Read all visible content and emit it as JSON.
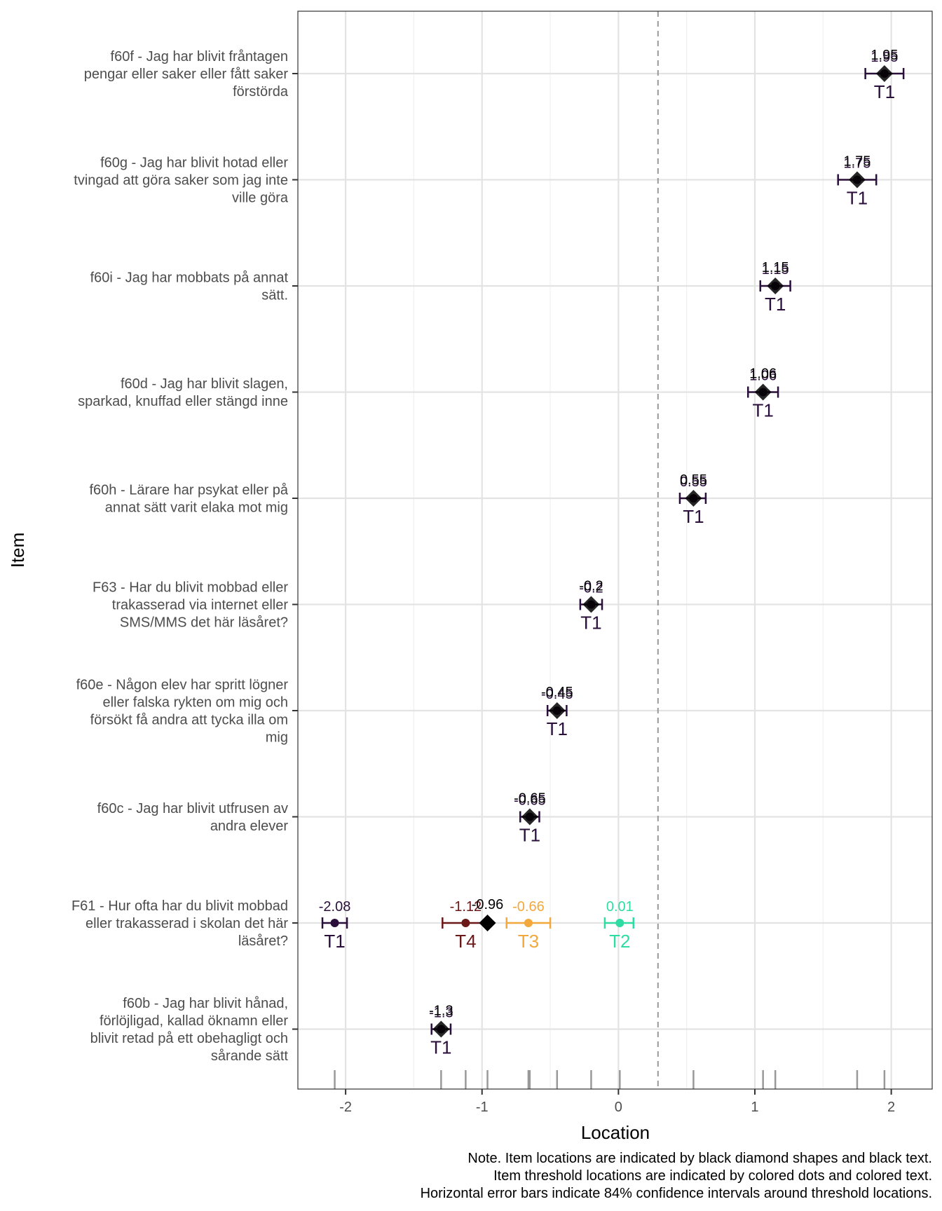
{
  "chart_data": {
    "type": "scatter",
    "title": "",
    "xlabel": "Location",
    "ylabel": "Item",
    "xlim": [
      -2.35,
      2.3
    ],
    "x_ticks": [
      -2,
      -1,
      0,
      1,
      2
    ],
    "x_tick_labels": [
      "-2",
      "-1",
      "0",
      "1",
      "2"
    ],
    "reference_line": 0.29,
    "grid": true,
    "items": [
      {
        "label": "f60f - Jag har blivit fråntagen pengar eller saker eller fått saker förstörda",
        "label_lines": [
          "f60f - Jag har blivit fråntagen",
          "pengar eller saker eller fått saker",
          "förstörda"
        ],
        "location": 1.95,
        "location_label": "1.95",
        "thresholds": [
          {
            "name": "T1",
            "value": 1.95,
            "label": "1.95",
            "ci": [
              1.81,
              2.09
            ]
          }
        ]
      },
      {
        "label": "f60g - Jag har blivit hotad eller tvingad att göra saker som jag inte ville göra",
        "label_lines": [
          "f60g - Jag har blivit hotad eller",
          "tvingad att göra saker som jag inte",
          "ville göra"
        ],
        "location": 1.75,
        "location_label": "1.75",
        "thresholds": [
          {
            "name": "T1",
            "value": 1.75,
            "label": "1.75",
            "ci": [
              1.61,
              1.89
            ]
          }
        ]
      },
      {
        "label": "f60i - Jag har mobbats på annat sätt.",
        "label_lines": [
          "f60i - Jag har mobbats på annat",
          "sätt."
        ],
        "location": 1.15,
        "location_label": "1.15",
        "thresholds": [
          {
            "name": "T1",
            "value": 1.15,
            "label": "1.15",
            "ci": [
              1.04,
              1.26
            ]
          }
        ]
      },
      {
        "label": "f60d - Jag har blivit slagen, sparkad, knuffad eller stängd inne",
        "label_lines": [
          "f60d - Jag har blivit slagen,",
          "sparkad, knuffad eller stängd inne"
        ],
        "location": 1.06,
        "location_label": "1.06",
        "thresholds": [
          {
            "name": "T1",
            "value": 1.06,
            "label": "1.06",
            "ci": [
              0.95,
              1.17
            ]
          }
        ]
      },
      {
        "label": "f60h - Lärare har psykat eller på annat sätt varit elaka mot mig",
        "label_lines": [
          "f60h - Lärare har psykat eller på",
          "annat sätt varit elaka mot mig"
        ],
        "location": 0.55,
        "location_label": "0.55",
        "thresholds": [
          {
            "name": "T1",
            "value": 0.55,
            "label": "0.55",
            "ci": [
              0.45,
              0.64
            ]
          }
        ]
      },
      {
        "label": "F63 - Har du blivit mobbad eller trakasserad via internet eller SMS/MMS det här läsåret?",
        "label_lines": [
          "F63 - Har du blivit mobbad eller",
          "trakasserad via internet eller",
          "SMS/MMS det här läsåret?"
        ],
        "location": -0.2,
        "location_label": "-0.2",
        "thresholds": [
          {
            "name": "T1",
            "value": -0.2,
            "label": "-0.2",
            "ci": [
              -0.28,
              -0.12
            ]
          }
        ]
      },
      {
        "label": "f60e - Någon elev har spritt lögner eller falska rykten om mig och försökt få andra att tycka illa om mig",
        "label_lines": [
          "f60e - Någon elev har spritt lögner",
          "eller falska rykten om mig och",
          "försökt få andra att tycka illa om",
          "mig"
        ],
        "location": -0.45,
        "location_label": "-0.45",
        "thresholds": [
          {
            "name": "T1",
            "value": -0.45,
            "label": "-0.45",
            "ci": [
              -0.52,
              -0.38
            ]
          }
        ]
      },
      {
        "label": "f60c - Jag har blivit utfrusen av andra elever",
        "label_lines": [
          "f60c - Jag har blivit utfrusen av",
          "andra elever"
        ],
        "location": -0.65,
        "location_label": "-0.65",
        "thresholds": [
          {
            "name": "T1",
            "value": -0.65,
            "label": "-0.65",
            "ci": [
              -0.72,
              -0.58
            ]
          }
        ]
      },
      {
        "label": "F61 - Hur ofta har du blivit mobbad eller trakasserad i skolan det här läsåret?",
        "label_lines": [
          "F61 - Hur ofta har du blivit mobbad",
          "eller trakasserad i skolan det här",
          "läsåret?"
        ],
        "location": -0.96,
        "location_label": "-0.96",
        "thresholds": [
          {
            "name": "T1",
            "value": -2.08,
            "label": "-2.08",
            "ci": [
              -2.17,
              -1.99
            ]
          },
          {
            "name": "T2",
            "value": 0.01,
            "label": "0.01",
            "ci": [
              -0.1,
              0.11
            ]
          },
          {
            "name": "T3",
            "value": -0.66,
            "label": "-0.66",
            "ci": [
              -0.82,
              -0.5
            ]
          },
          {
            "name": "T4",
            "value": -1.12,
            "label": "-1.12",
            "ci": [
              -1.29,
              -0.95
            ]
          }
        ]
      },
      {
        "label": "f60b - Jag har blivit hånad, förlöjligad, kallad öknamn eller blivit retad på ett obehagligt och sårande sätt",
        "label_lines": [
          "f60b - Jag har blivit hånad,",
          "förlöjligad, kallad öknamn eller",
          "blivit retad på ett obehagligt och",
          "sårande sätt"
        ],
        "location": -1.3,
        "location_label": "-1.3",
        "thresholds": [
          {
            "name": "T1",
            "value": -1.3,
            "label": "-1.3",
            "ci": [
              -1.37,
              -1.23
            ]
          }
        ]
      }
    ],
    "threshold_colors": {
      "T1": "#2a0f3b",
      "T2": "#2fdca3",
      "T3": "#f3a83b",
      "T4": "#6b1818"
    },
    "rug": [
      -2.08,
      -1.3,
      -1.12,
      -0.96,
      -0.65,
      -0.66,
      -0.45,
      -0.2,
      0.01,
      0.55,
      1.06,
      1.15,
      1.75,
      1.95
    ],
    "notes": [
      "Note. Item locations are indicated by black diamond shapes and black text.",
      "Item threshold locations are indicated by colored dots and colored text.",
      "Horizontal error bars indicate 84% confidence intervals around threshold locations."
    ]
  }
}
